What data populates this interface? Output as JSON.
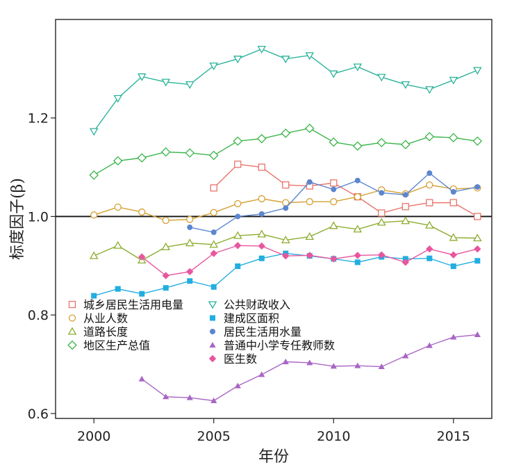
{
  "chart_data": {
    "type": "line",
    "xlabel": "年份",
    "ylabel": "标度因子(β)",
    "xlim": [
      1998.4,
      2016.6
    ],
    "ylim": [
      0.59,
      1.4
    ],
    "xticks": [
      2000,
      2005,
      2010,
      2015
    ],
    "yticks": [
      0.6,
      0.8,
      1.0,
      1.2
    ],
    "ytick_labels": [
      "0.6",
      "0.8",
      "1.0",
      "1.2"
    ],
    "reference_line": 1.0,
    "legend_position": "bottom-left",
    "series": [
      {
        "name": "城乡居民生活用电量",
        "color": "#e8736b",
        "marker": "square-open",
        "x": [
          2005,
          2006,
          2007,
          2008,
          2009,
          2010,
          2011,
          2012,
          2013,
          2014,
          2015,
          2016
        ],
        "y": [
          1.058,
          1.106,
          1.1,
          1.064,
          1.062,
          1.068,
          1.04,
          1.007,
          1.02,
          1.028,
          1.028,
          1.0
        ]
      },
      {
        "name": "从业人数",
        "color": "#d4a032",
        "marker": "circle-open",
        "x": [
          2000,
          2001,
          2002,
          2003,
          2004,
          2005,
          2006,
          2007,
          2008,
          2009,
          2010,
          2011,
          2012,
          2013,
          2014,
          2015,
          2016
        ],
        "y": [
          1.003,
          1.019,
          1.009,
          0.992,
          0.994,
          1.008,
          1.026,
          1.036,
          1.028,
          1.03,
          1.03,
          1.04,
          1.054,
          1.046,
          1.064,
          1.056,
          1.058
        ]
      },
      {
        "name": "道路长度",
        "color": "#8cac2e",
        "marker": "triangle-up-open",
        "x": [
          2000,
          2001,
          2002,
          2003,
          2004,
          2005,
          2006,
          2007,
          2008,
          2009,
          2010,
          2011,
          2012,
          2013,
          2014,
          2015,
          2016
        ],
        "y": [
          0.92,
          0.941,
          0.911,
          0.938,
          0.946,
          0.943,
          0.961,
          0.964,
          0.952,
          0.959,
          0.981,
          0.974,
          0.988,
          0.991,
          0.982,
          0.957,
          0.956
        ]
      },
      {
        "name": "地区生产总值",
        "color": "#3ab54a",
        "marker": "diamond-open",
        "x": [
          2000,
          2001,
          2002,
          2003,
          2004,
          2005,
          2006,
          2007,
          2008,
          2009,
          2010,
          2011,
          2012,
          2013,
          2014,
          2015,
          2016
        ],
        "y": [
          1.084,
          1.113,
          1.119,
          1.131,
          1.129,
          1.124,
          1.153,
          1.158,
          1.169,
          1.179,
          1.151,
          1.143,
          1.15,
          1.146,
          1.162,
          1.16,
          1.153
        ]
      },
      {
        "name": "公共财政收入",
        "color": "#2ab39a",
        "marker": "triangle-down-open",
        "x": [
          2000,
          2001,
          2002,
          2003,
          2004,
          2005,
          2006,
          2007,
          2008,
          2009,
          2010,
          2011,
          2012,
          2013,
          2014,
          2015,
          2016
        ],
        "y": [
          1.173,
          1.24,
          1.284,
          1.273,
          1.268,
          1.306,
          1.32,
          1.34,
          1.32,
          1.327,
          1.29,
          1.304,
          1.283,
          1.268,
          1.258,
          1.277,
          1.297
        ]
      },
      {
        "name": "建成区面积",
        "color": "#22aee0",
        "marker": "square-filled",
        "x": [
          2000,
          2001,
          2002,
          2003,
          2004,
          2005,
          2006,
          2007,
          2008,
          2009,
          2010,
          2011,
          2012,
          2013,
          2014,
          2015,
          2016
        ],
        "y": [
          0.839,
          0.853,
          0.843,
          0.855,
          0.869,
          0.857,
          0.899,
          0.915,
          0.925,
          0.92,
          0.914,
          0.907,
          0.918,
          0.914,
          0.915,
          0.899,
          0.91
        ]
      },
      {
        "name": "居民生活用水量",
        "color": "#5b86cf",
        "marker": "circle-filled",
        "x": [
          2004,
          2005,
          2006,
          2007,
          2008,
          2009,
          2010,
          2011,
          2012,
          2013,
          2014,
          2015,
          2016
        ],
        "y": [
          0.978,
          0.968,
          1.0,
          1.005,
          1.017,
          1.07,
          1.055,
          1.073,
          1.048,
          1.044,
          1.088,
          1.05,
          1.06
        ]
      },
      {
        "name": "普通中小学专任教师数",
        "color": "#a866c4",
        "marker": "triangle-up-filled",
        "x": [
          2002,
          2003,
          2004,
          2005,
          2006,
          2007,
          2008,
          2009,
          2010,
          2011,
          2012,
          2013,
          2014,
          2015,
          2016
        ],
        "y": [
          0.67,
          0.634,
          0.632,
          0.626,
          0.656,
          0.679,
          0.705,
          0.703,
          0.696,
          0.697,
          0.695,
          0.717,
          0.738,
          0.755,
          0.76
        ]
      },
      {
        "name": "医生数",
        "color": "#e8569e",
        "marker": "diamond-filled",
        "x": [
          2002,
          2003,
          2004,
          2005,
          2006,
          2007,
          2008,
          2009,
          2010,
          2011,
          2012,
          2013,
          2014,
          2015,
          2016
        ],
        "y": [
          0.918,
          0.88,
          0.888,
          0.925,
          0.941,
          0.94,
          0.92,
          0.921,
          0.914,
          0.921,
          0.922,
          0.907,
          0.934,
          0.922,
          0.934
        ]
      }
    ]
  }
}
